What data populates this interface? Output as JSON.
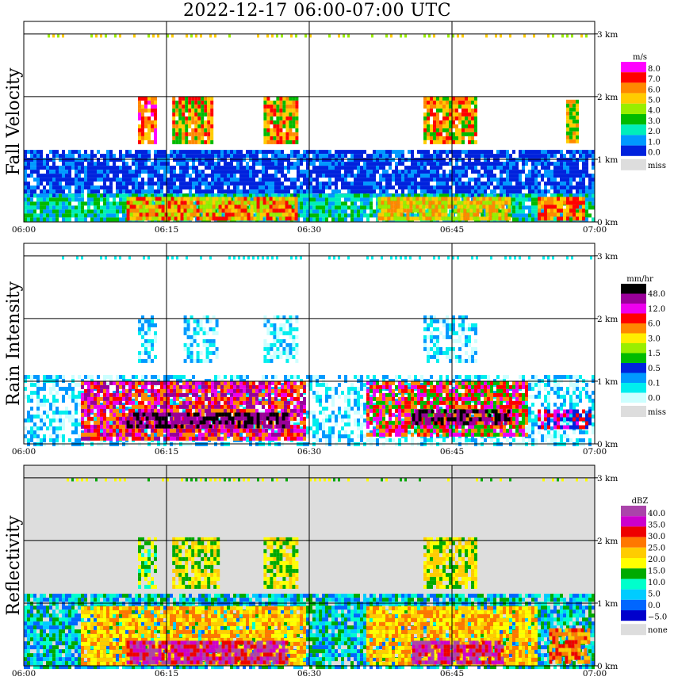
{
  "title": "2022-12-17   06:00-07:00 UTC",
  "chart_data": [
    {
      "type": "heatmap",
      "ylabel": "Fall Velocity",
      "x_ticks": [
        "06:00",
        "06:15",
        "06:30",
        "06:45",
        "07:00"
      ],
      "y_ticks": [
        "0 km",
        "1 km",
        "2 km",
        "3 km"
      ],
      "ylim_km": [
        0,
        3.2
      ],
      "grid": true,
      "background": "#ffffff",
      "legend": {
        "unit": "m/s",
        "labels": [
          "8.0",
          "7.0",
          "6.0",
          "5.0",
          "4.0",
          "3.0",
          "2.0",
          "1.0",
          "0.0"
        ],
        "colors": [
          "#ff00ff",
          "#ff0000",
          "#ff8800",
          "#ffcc00",
          "#99ee00",
          "#00bb00",
          "#00eebb",
          "#0099ff",
          "#0022dd"
        ],
        "miss_label": "miss",
        "miss_color": "#dddddd"
      }
    },
    {
      "type": "heatmap",
      "ylabel": "Rain Intensity",
      "x_ticks": [
        "06:00",
        "06:15",
        "06:30",
        "06:45",
        "07:00"
      ],
      "y_ticks": [
        "0 km",
        "1 km",
        "2 km",
        "3 km"
      ],
      "ylim_km": [
        0,
        3.2
      ],
      "grid": true,
      "background": "#ffffff",
      "legend": {
        "unit": "mm/hr",
        "labels": [
          "48.0",
          "12.0",
          "6.0",
          "3.0",
          "1.5",
          "0.5",
          "0.1",
          "0.0"
        ],
        "colors": [
          "#000000",
          "#990099",
          "#ee00ee",
          "#ff0000",
          "#ff8800",
          "#ffee00",
          "#99ee00",
          "#00bb00",
          "#0022dd",
          "#0099ff",
          "#00eeee",
          "#ccffff"
        ],
        "miss_label": "miss",
        "miss_color": "#dddddd"
      }
    },
    {
      "type": "heatmap",
      "ylabel": "Reflectivity",
      "x_ticks": [
        "06:00",
        "06:15",
        "06:30",
        "06:45",
        "07:00"
      ],
      "y_ticks": [
        "0 km",
        "1 km",
        "2 km",
        "3 km"
      ],
      "ylim_km": [
        0,
        3.2
      ],
      "grid": true,
      "background": "#dddddd",
      "legend": {
        "unit": "dBZ",
        "labels": [
          "40.0",
          "35.0",
          "30.0",
          "25.0",
          "20.0",
          "15.0",
          "10.0",
          "5.0",
          "0.0",
          "−5.0"
        ],
        "colors": [
          "#aa44aa",
          "#cc00cc",
          "#ee0000",
          "#ff7700",
          "#ffcc00",
          "#ffff00",
          "#00aa00",
          "#00ffcc",
          "#00ccff",
          "#0066ff",
          "#0000cc"
        ],
        "miss_label": "none",
        "miss_color": "#dddddd"
      }
    }
  ]
}
